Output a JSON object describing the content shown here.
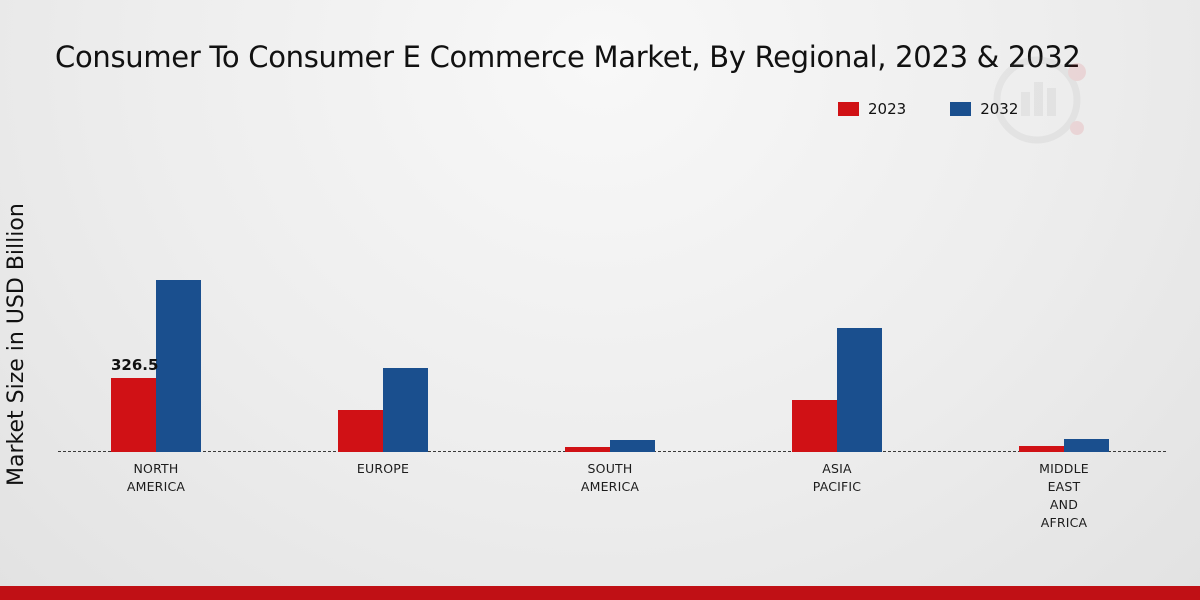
{
  "chart_data": {
    "type": "bar",
    "title": "Consumer To Consumer E Commerce Market, By Regional, 2023 & 2032",
    "categories": [
      "NORTH AMERICA",
      "EUROPE",
      "SOUTH AMERICA",
      "ASIA PACIFIC",
      "MIDDLE EAST AND AFRICA"
    ],
    "series": [
      {
        "name": "2023",
        "color": "#d01115",
        "values": [
          326.5,
          185,
          22,
          230,
          28
        ]
      },
      {
        "name": "2032",
        "color": "#1a4f8e",
        "values": [
          760,
          370,
          53,
          550,
          58
        ]
      }
    ],
    "annotations": [
      {
        "series": "2023",
        "category_index": 0,
        "text": "326.5"
      }
    ],
    "xlabel": "",
    "ylabel": "Market Size in USD Billion",
    "ylim": [
      0,
      800
    ],
    "grid": false,
    "legend_position": "top-right",
    "baseline_style": "dashed"
  },
  "footer": {
    "bar_color": "#c01015"
  }
}
